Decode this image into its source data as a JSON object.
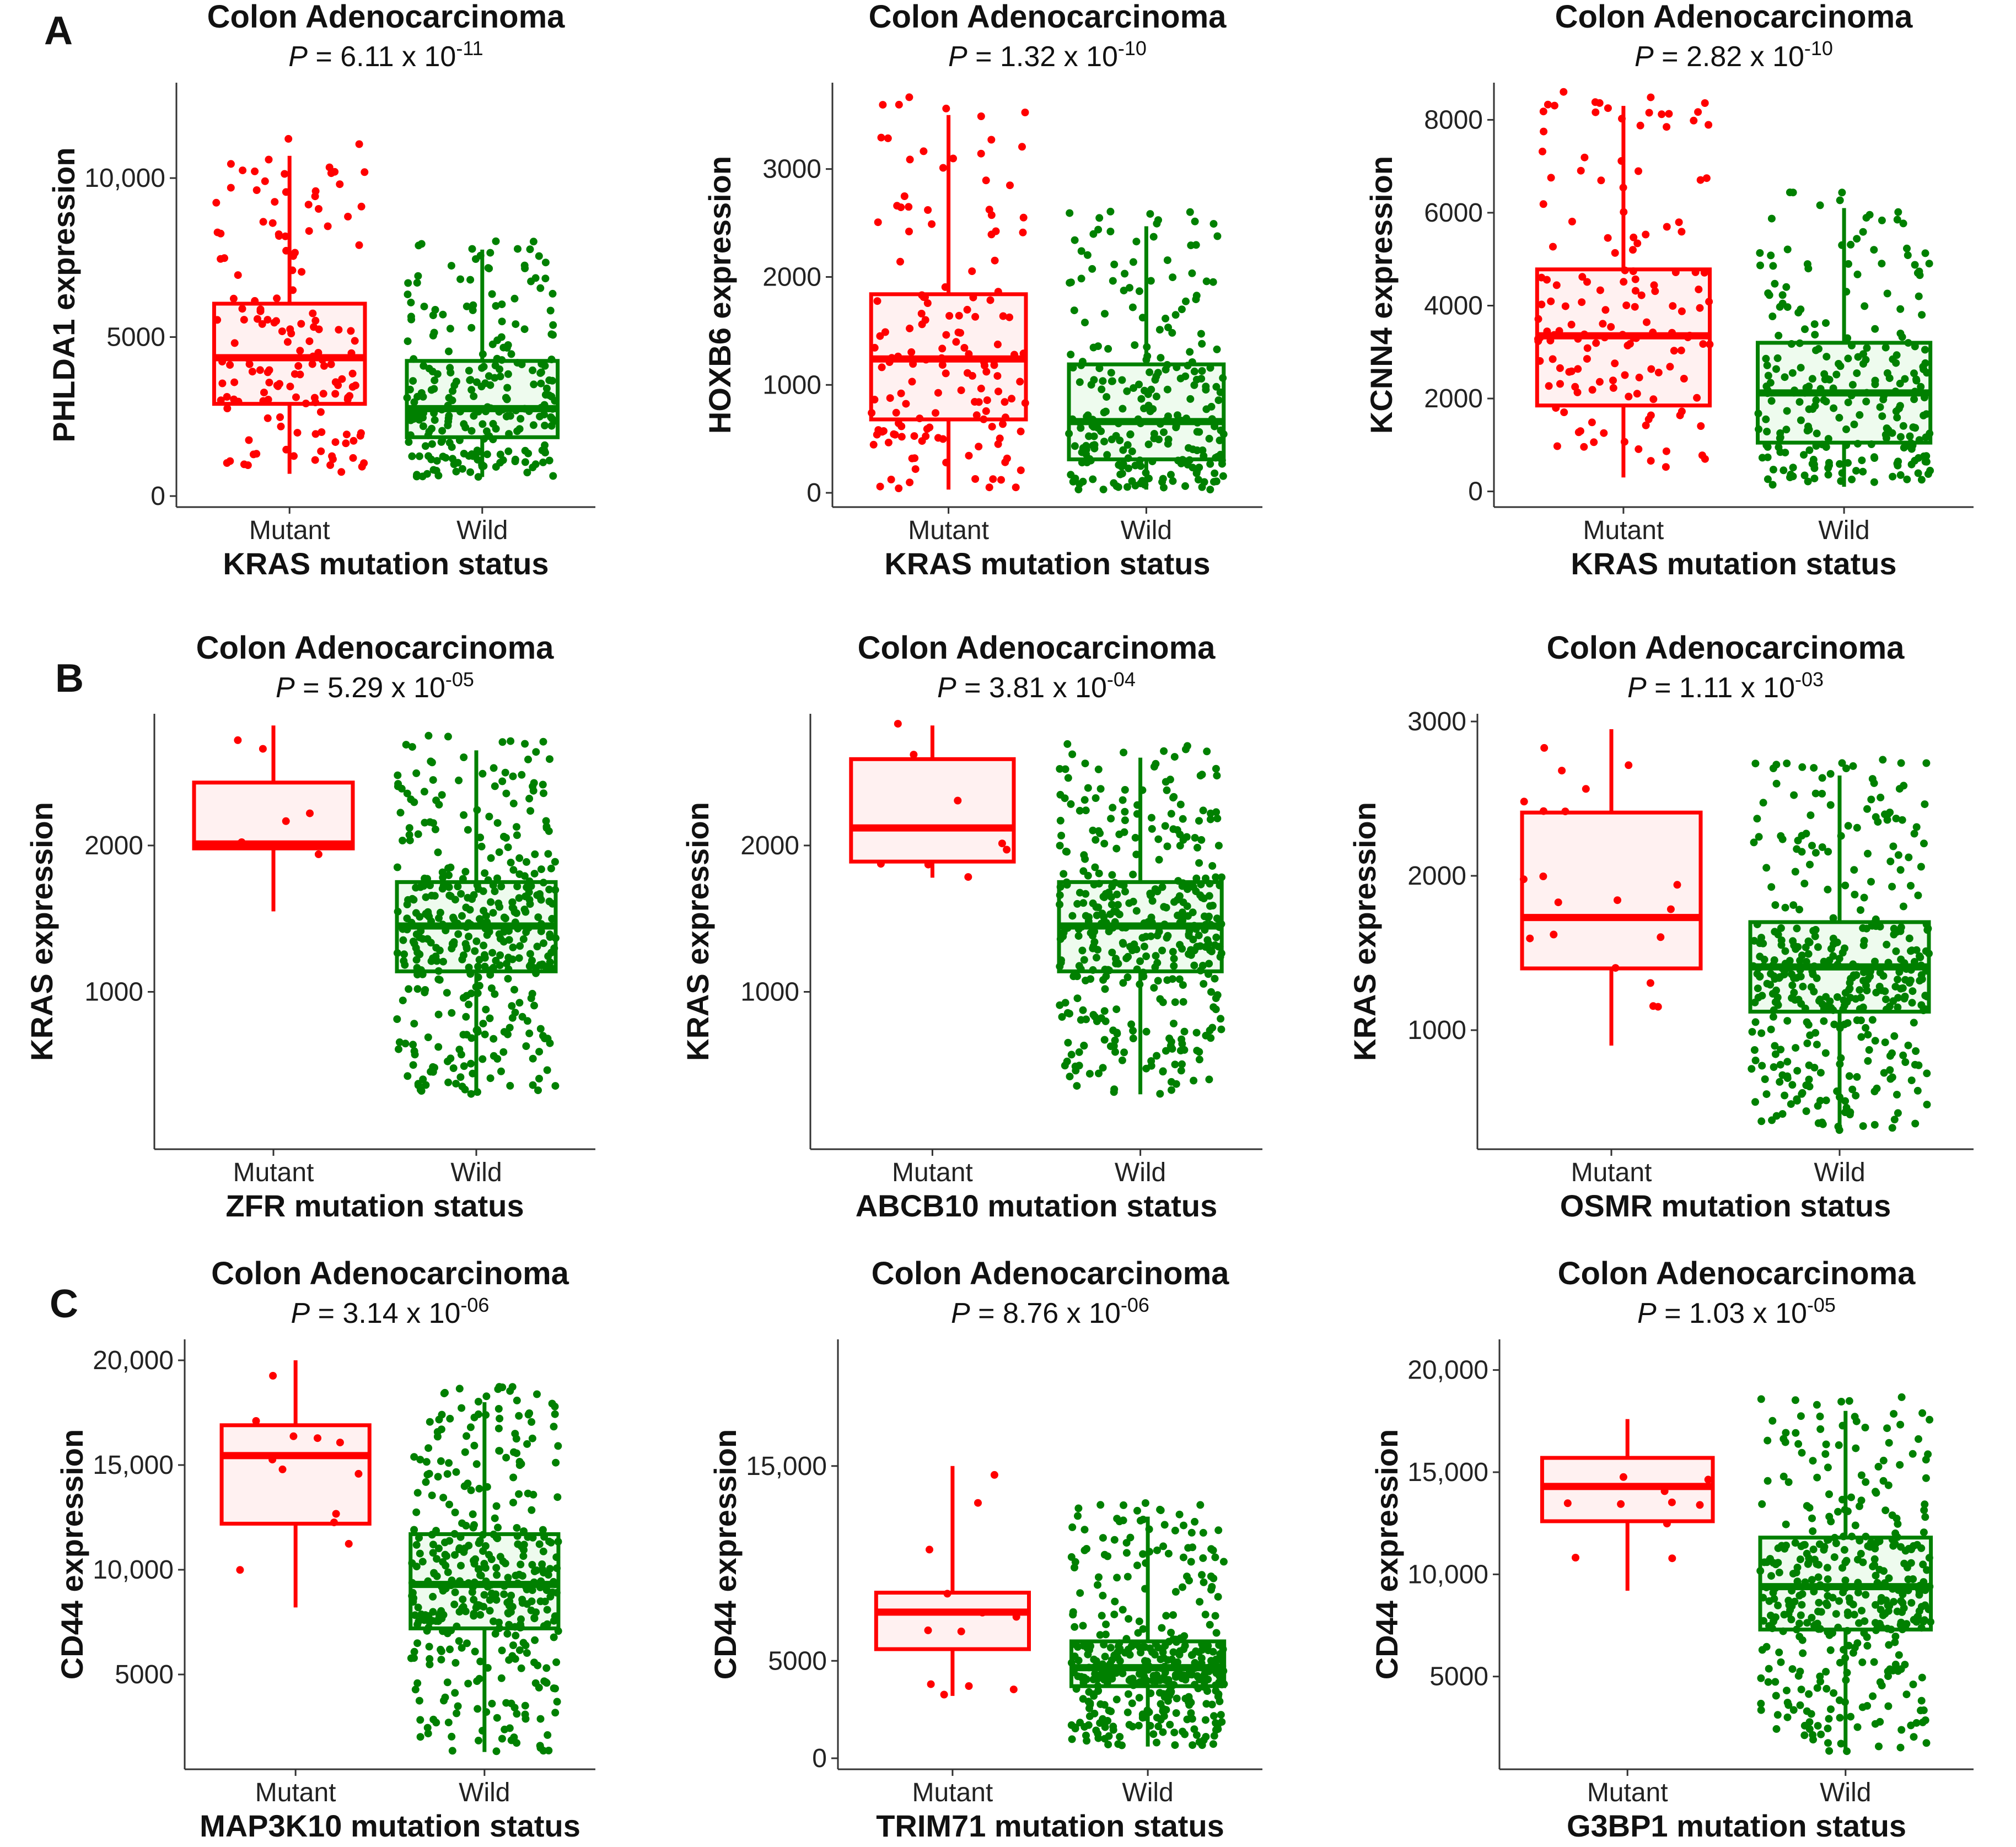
{
  "panel_letters": [
    "A",
    "B",
    "C"
  ],
  "chart_data": [
    {
      "type": "boxplot",
      "panel": "A",
      "title": "Colon Adenocarcinoma",
      "p_prefix": "P",
      "p_mantissa": " = 6.11 x 10",
      "p_exponent": "-11",
      "ylabel": "PHLDA1 expression",
      "xlabel": "KRAS mutation status",
      "categories": [
        "Mutant",
        "Wild"
      ],
      "ylim": [
        0,
        13000
      ],
      "yticks": [
        0,
        5000,
        10000
      ],
      "ytick_labels": [
        "0",
        "5000",
        "10,000"
      ],
      "boxes": [
        {
          "min": 700,
          "q1": 2900,
          "median": 4350,
          "q3": 6050,
          "max": 10700,
          "n": 150
        },
        {
          "min": 600,
          "q1": 1850,
          "median": 2750,
          "q3": 4250,
          "max": 7750,
          "n": 250
        }
      ],
      "colors": {
        "Mutant": "#ff0000",
        "Wild": "#008000"
      }
    },
    {
      "type": "boxplot",
      "panel": "A",
      "title": "Colon Adenocarcinoma",
      "p_prefix": "P",
      "p_mantissa": " = 1.32 x 10",
      "p_exponent": "-10",
      "ylabel": "HOXB6 expression",
      "xlabel": "KRAS mutation status",
      "categories": [
        "Mutant",
        "Wild"
      ],
      "ylim": [
        -30,
        3800
      ],
      "yticks": [
        0,
        1000,
        2000,
        3000
      ],
      "ytick_labels": [
        "0",
        "1000",
        "2000",
        "3000"
      ],
      "boxes": [
        {
          "min": 30,
          "q1": 680,
          "median": 1240,
          "q3": 1840,
          "max": 3500,
          "n": 150
        },
        {
          "min": 30,
          "q1": 310,
          "median": 660,
          "q3": 1190,
          "max": 2470,
          "n": 250
        }
      ],
      "colors": {
        "Mutant": "#ff0000",
        "Wild": "#008000"
      }
    },
    {
      "type": "boxplot",
      "panel": "A",
      "title": "Colon Adenocarcinoma",
      "p_prefix": "P",
      "p_mantissa": " = 2.82 x 10",
      "p_exponent": "-10",
      "ylabel": "KCNN4 expression",
      "xlabel": "KRAS mutation status",
      "categories": [
        "Mutant",
        "Wild"
      ],
      "ylim": [
        -100,
        8800
      ],
      "yticks": [
        0,
        2000,
        4000,
        6000,
        8000
      ],
      "ytick_labels": [
        "0",
        "2000",
        "4000",
        "6000",
        "8000"
      ],
      "boxes": [
        {
          "min": 300,
          "q1": 1850,
          "median": 3350,
          "q3": 4780,
          "max": 8300,
          "n": 150
        },
        {
          "min": 100,
          "q1": 1050,
          "median": 2120,
          "q3": 3200,
          "max": 6100,
          "n": 250
        }
      ],
      "colors": {
        "Mutant": "#ff0000",
        "Wild": "#008000"
      }
    },
    {
      "type": "boxplot",
      "panel": "B",
      "title": "Colon Adenocarcinoma",
      "p_prefix": "P",
      "p_mantissa": " = 5.29 x 10",
      "p_exponent": "-05",
      "ylabel": "KRAS expression",
      "xlabel": "ZFR mutation status",
      "categories": [
        "Mutant",
        "Wild"
      ],
      "ylim": [
        0,
        2900
      ],
      "yticks": [
        1000,
        2000
      ],
      "ytick_labels": [
        "1000",
        "2000"
      ],
      "boxes": [
        {
          "min": 1550,
          "q1": 1980,
          "median": 2010,
          "q3": 2430,
          "max": 2820,
          "n": 8
        },
        {
          "min": 300,
          "q1": 1140,
          "median": 1450,
          "q3": 1750,
          "max": 2650,
          "n": 400
        }
      ],
      "colors": {
        "Mutant": "#ff0000",
        "Wild": "#008000"
      }
    },
    {
      "type": "boxplot",
      "panel": "B",
      "title": "Colon Adenocarcinoma",
      "p_prefix": "P",
      "p_mantissa": " = 3.81 x 10",
      "p_exponent": "-04",
      "ylabel": "KRAS expression",
      "xlabel": "ABCB10 mutation status",
      "categories": [
        "Mutant",
        "Wild"
      ],
      "ylim": [
        0,
        2900
      ],
      "yticks": [
        1000,
        2000
      ],
      "ytick_labels": [
        "1000",
        "2000"
      ],
      "boxes": [
        {
          "min": 1780,
          "q1": 1890,
          "median": 2120,
          "q3": 2590,
          "max": 2820,
          "n": 8
        },
        {
          "min": 300,
          "q1": 1140,
          "median": 1450,
          "q3": 1750,
          "max": 2600,
          "n": 400
        }
      ],
      "colors": {
        "Mutant": "#ff0000",
        "Wild": "#008000"
      }
    },
    {
      "type": "boxplot",
      "panel": "B",
      "title": "Colon Adenocarcinoma",
      "p_prefix": "P",
      "p_mantissa": " = 1.11 x 10",
      "p_exponent": "-03",
      "ylabel": "KRAS expression",
      "xlabel": "OSMR mutation status",
      "categories": [
        "Mutant",
        "Wild"
      ],
      "ylim": [
        300,
        3050
      ],
      "yticks": [
        1000,
        2000,
        3000
      ],
      "ytick_labels": [
        "1000",
        "2000",
        "3000"
      ],
      "boxes": [
        {
          "min": 900,
          "q1": 1400,
          "median": 1730,
          "q3": 2410,
          "max": 2950,
          "n": 20
        },
        {
          "min": 350,
          "q1": 1120,
          "median": 1410,
          "q3": 1700,
          "max": 2650,
          "n": 400
        }
      ],
      "colors": {
        "Mutant": "#ff0000",
        "Wild": "#008000"
      }
    },
    {
      "type": "boxplot",
      "panel": "C",
      "title": "Colon Adenocarcinoma",
      "p_prefix": "P",
      "p_mantissa": " = 3.14 x 10",
      "p_exponent": "-06",
      "ylabel": "CD44 expression",
      "xlabel": "MAP3K10 mutation status",
      "categories": [
        "Mutant",
        "Wild"
      ],
      "ylim": [
        1000,
        21000
      ],
      "yticks": [
        5000,
        10000,
        15000,
        20000
      ],
      "ytick_labels": [
        "5000",
        "10,000",
        "15,000",
        "20,000"
      ],
      "boxes": [
        {
          "min": 8200,
          "q1": 12200,
          "median": 15450,
          "q3": 16900,
          "max": 20000,
          "n": 12
        },
        {
          "min": 1300,
          "q1": 7200,
          "median": 9300,
          "q3": 11700,
          "max": 18000,
          "n": 400
        }
      ],
      "colors": {
        "Mutant": "#ff0000",
        "Wild": "#008000"
      }
    },
    {
      "type": "boxplot",
      "panel": "C",
      "title": "Colon Adenocarcinoma",
      "p_prefix": "P",
      "p_mantissa": " = 8.76 x 10",
      "p_exponent": "-06",
      "ylabel": "CD44 expression",
      "xlabel": "TRIM71 mutation status",
      "categories": [
        "Mutant",
        "Wild"
      ],
      "ylim": [
        0,
        21500
      ],
      "yticks": [
        0,
        5000,
        15000
      ],
      "ytick_labels": [
        "0",
        "5000",
        "15,000"
      ],
      "boxes": [
        {
          "min": 3200,
          "q1": 5600,
          "median": 7500,
          "q3": 8500,
          "max": 15000,
          "n": 12
        },
        {
          "min": 600,
          "q1": 3700,
          "median": 4650,
          "q3": 6000,
          "max": 12400,
          "n": 400
        }
      ],
      "colors": {
        "Mutant": "#ff0000",
        "Wild": "#008000"
      }
    },
    {
      "type": "boxplot",
      "panel": "C",
      "title": "Colon Adenocarcinoma",
      "p_prefix": "P",
      "p_mantissa": " = 1.03 x 10",
      "p_exponent": "-05",
      "ylabel": "CD44 expression",
      "xlabel": "G3BP1 mutation status",
      "categories": [
        "Mutant",
        "Wild"
      ],
      "ylim": [
        1000,
        21500
      ],
      "yticks": [
        5000,
        10000,
        15000,
        20000
      ],
      "ytick_labels": [
        "5000",
        "10,000",
        "15,000",
        "20,000"
      ],
      "boxes": [
        {
          "min": 9200,
          "q1": 12600,
          "median": 14300,
          "q3": 15700,
          "max": 17600,
          "n": 10
        },
        {
          "min": 1300,
          "q1": 7300,
          "median": 9400,
          "q3": 11800,
          "max": 18000,
          "n": 400
        }
      ],
      "colors": {
        "Mutant": "#ff0000",
        "Wild": "#008000"
      }
    }
  ]
}
